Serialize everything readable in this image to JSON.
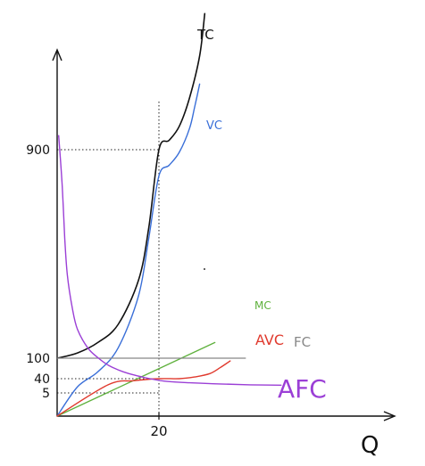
{
  "chart_data": {
    "type": "line",
    "title": "",
    "xlabel": "Q",
    "ylabel": "",
    "x_ticks": [
      {
        "value": 20,
        "label": "20"
      }
    ],
    "y_ticks": [
      {
        "value": 5,
        "label": "5"
      },
      {
        "value": 40,
        "label": "40"
      },
      {
        "value": 100,
        "label": "100"
      },
      {
        "value": 900,
        "label": "900"
      }
    ],
    "grid": false,
    "series": [
      {
        "name": "TC",
        "color": "#111111",
        "points": [
          [
            0,
            100
          ],
          [
            4,
            120
          ],
          [
            8,
            160
          ],
          [
            12,
            230
          ],
          [
            16,
            400
          ],
          [
            18,
            600
          ],
          [
            20,
            900
          ],
          [
            22,
            940
          ],
          [
            24,
            1000
          ],
          [
            26,
            1120
          ],
          [
            28,
            1300
          ],
          [
            29,
            1480
          ]
        ]
      },
      {
        "name": "VC",
        "color": "#3a6fd8",
        "points": [
          [
            0,
            0
          ],
          [
            4,
            20
          ],
          [
            8,
            60
          ],
          [
            12,
            140
          ],
          [
            16,
            340
          ],
          [
            18,
            560
          ],
          [
            20,
            800
          ],
          [
            22,
            840
          ],
          [
            24,
            890
          ],
          [
            26,
            990
          ],
          [
            27,
            1080
          ],
          [
            28,
            1180
          ]
        ]
      },
      {
        "name": "MC",
        "color": "#5fb13d",
        "points": [
          [
            0,
            0
          ],
          [
            31,
            160
          ]
        ]
      },
      {
        "name": "AVC",
        "color": "#e03a2e",
        "points": [
          [
            0,
            0
          ],
          [
            10,
            25
          ],
          [
            15,
            35
          ],
          [
            20,
            40
          ],
          [
            24,
            40
          ],
          [
            27,
            45
          ],
          [
            30,
            55
          ],
          [
            32,
            72
          ],
          [
            34,
            92
          ]
        ]
      },
      {
        "name": "FC",
        "color": "#888888",
        "points": [
          [
            0,
            100
          ],
          [
            37,
            100
          ]
        ]
      },
      {
        "name": "AFC",
        "color": "#9b3fd6",
        "points": [
          [
            0.3,
            960
          ],
          [
            1,
            760
          ],
          [
            1.5,
            560
          ],
          [
            2,
            420
          ],
          [
            3,
            290
          ],
          [
            4,
            210
          ],
          [
            6,
            140
          ],
          [
            8,
            102
          ],
          [
            10,
            80
          ],
          [
            13,
            60
          ],
          [
            17,
            44
          ],
          [
            21,
            34
          ],
          [
            26,
            30
          ],
          [
            32,
            27
          ],
          [
            38,
            25
          ],
          [
            44,
            24
          ]
        ]
      }
    ],
    "reference_lines": [
      {
        "x": 20,
        "y": 900
      },
      {
        "x": 20,
        "y": 40
      },
      {
        "x": 20,
        "y": 5
      }
    ]
  }
}
